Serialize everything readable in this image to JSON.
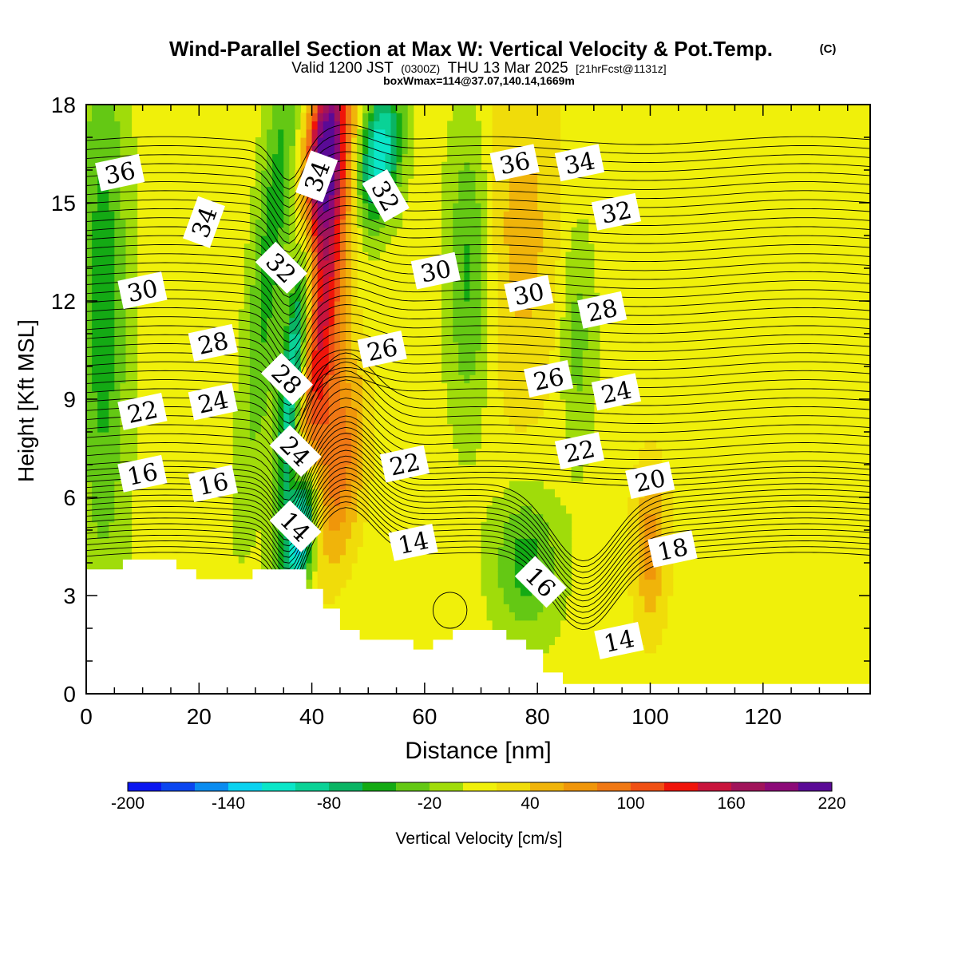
{
  "chart_data": {
    "type": "heatmap",
    "title": "Wind-Parallel Section at Max W: Vertical Velocity & Pot.Temp.",
    "title_mark": "(C)",
    "subtitle_parts": [
      "Valid 1200 JST",
      "(0300Z)",
      "THU 13 Mar 2025",
      "[21hrFcst@1131z]"
    ],
    "subtitle2": "boxWmax=114@37.07,140.14,1669m",
    "xlabel": "Distance [nm]",
    "ylabel": "Height [Kft MSL]",
    "xlim": [
      0,
      139
    ],
    "ylim": [
      0,
      18
    ],
    "x_ticks": [
      0,
      20,
      40,
      60,
      80,
      100,
      120
    ],
    "y_ticks": [
      0,
      3,
      6,
      9,
      12,
      15,
      18
    ],
    "colorbar": {
      "label": "Vertical Velocity [cm/s]",
      "tick_labels": [
        -200,
        -140,
        -80,
        -20,
        40,
        100,
        160,
        220
      ],
      "colors": [
        "#0a16f0",
        "#0a46f0",
        "#0a8cf0",
        "#0ad2f0",
        "#0ae6c8",
        "#0ad296",
        "#0ab464",
        "#14aa14",
        "#64c814",
        "#a0dc0a",
        "#f0f00a",
        "#f0dc0a",
        "#f0b40a",
        "#f0960a",
        "#f07814",
        "#f05014",
        "#f0140a",
        "#c8143c",
        "#a0145a",
        "#8c0a78",
        "#5a0a96"
      ],
      "level_min": -200,
      "level_step": 20
    },
    "w_field": {
      "features": [
        {
          "x": 42,
          "y": 12,
          "w": 140
        },
        {
          "x": 42,
          "y": 16.5,
          "w": 190
        },
        {
          "x": 45,
          "y": 7,
          "w": 80
        },
        {
          "x": 38,
          "y": 5,
          "w": -180
        },
        {
          "x": 37,
          "y": 10,
          "w": -140
        },
        {
          "x": 52,
          "y": 16.5,
          "w": -130
        },
        {
          "x": 3,
          "y": 12,
          "w": -60
        },
        {
          "x": 33,
          "y": 14,
          "w": -60
        },
        {
          "x": 68,
          "y": 13,
          "w": -60
        },
        {
          "x": 78,
          "y": 4,
          "w": -60
        },
        {
          "x": 87,
          "y": 11,
          "w": -40
        },
        {
          "x": 77,
          "y": 14,
          "w": 40
        },
        {
          "x": 100,
          "y": 4.5,
          "w": 60
        },
        {
          "x": 120,
          "y": 10,
          "w": 10
        }
      ]
    },
    "theta_labels": [
      {
        "text": "36",
        "x": 6,
        "y": 15.9
      },
      {
        "text": "34",
        "x": 21,
        "y": 14.4
      },
      {
        "text": "30",
        "x": 10,
        "y": 12.3
      },
      {
        "text": "28",
        "x": 22.5,
        "y": 10.7
      },
      {
        "text": "22",
        "x": 10,
        "y": 8.6
      },
      {
        "text": "24",
        "x": 22.5,
        "y": 8.9
      },
      {
        "text": "16",
        "x": 10,
        "y": 6.7
      },
      {
        "text": "16",
        "x": 22.5,
        "y": 6.4
      },
      {
        "text": "34",
        "x": 41,
        "y": 15.8
      },
      {
        "text": "32",
        "x": 34.5,
        "y": 13.0
      },
      {
        "text": "28",
        "x": 35.5,
        "y": 9.6
      },
      {
        "text": "24",
        "x": 37,
        "y": 7.4
      },
      {
        "text": "14",
        "x": 37,
        "y": 5.1
      },
      {
        "text": "32",
        "x": 53,
        "y": 15.2
      },
      {
        "text": "30",
        "x": 62,
        "y": 12.9
      },
      {
        "text": "26",
        "x": 52.5,
        "y": 10.5
      },
      {
        "text": "22",
        "x": 56.5,
        "y": 7.0
      },
      {
        "text": "14",
        "x": 58,
        "y": 4.6
      },
      {
        "text": "36",
        "x": 76,
        "y": 16.2
      },
      {
        "text": "34",
        "x": 87.5,
        "y": 16.2
      },
      {
        "text": "32",
        "x": 94,
        "y": 14.7
      },
      {
        "text": "30",
        "x": 78.5,
        "y": 12.2
      },
      {
        "text": "28",
        "x": 91.5,
        "y": 11.7
      },
      {
        "text": "26",
        "x": 82,
        "y": 9.6
      },
      {
        "text": "24",
        "x": 94,
        "y": 9.2
      },
      {
        "text": "22",
        "x": 87.5,
        "y": 7.4
      },
      {
        "text": "20",
        "x": 100,
        "y": 6.5
      },
      {
        "text": "18",
        "x": 104,
        "y": 4.4
      },
      {
        "text": "16",
        "x": 80.5,
        "y": 3.4
      },
      {
        "text": "14",
        "x": 94.5,
        "y": 1.6
      }
    ],
    "terrain": [
      [
        0,
        3.8
      ],
      [
        6.5,
        3.8
      ],
      [
        6.5,
        4.1
      ],
      [
        16,
        4.1
      ],
      [
        16,
        3.8
      ],
      [
        19.5,
        3.8
      ],
      [
        19.5,
        3.5
      ],
      [
        29.5,
        3.5
      ],
      [
        29.5,
        3.8
      ],
      [
        39,
        3.8
      ],
      [
        39,
        3.2
      ],
      [
        42,
        3.2
      ],
      [
        42,
        2.6
      ],
      [
        45,
        2.6
      ],
      [
        45,
        1.95
      ],
      [
        48.5,
        1.95
      ],
      [
        48.5,
        1.65
      ],
      [
        58,
        1.65
      ],
      [
        58,
        1.35
      ],
      [
        61.5,
        1.35
      ],
      [
        61.5,
        1.65
      ],
      [
        65,
        1.65
      ],
      [
        65,
        1.95
      ],
      [
        74.5,
        1.95
      ],
      [
        74.5,
        1.65
      ],
      [
        78,
        1.65
      ],
      [
        78,
        1.35
      ],
      [
        81,
        1.35
      ],
      [
        81,
        0.65
      ],
      [
        84.5,
        0.65
      ],
      [
        84.5,
        0.3
      ],
      [
        139,
        0.3
      ]
    ]
  }
}
